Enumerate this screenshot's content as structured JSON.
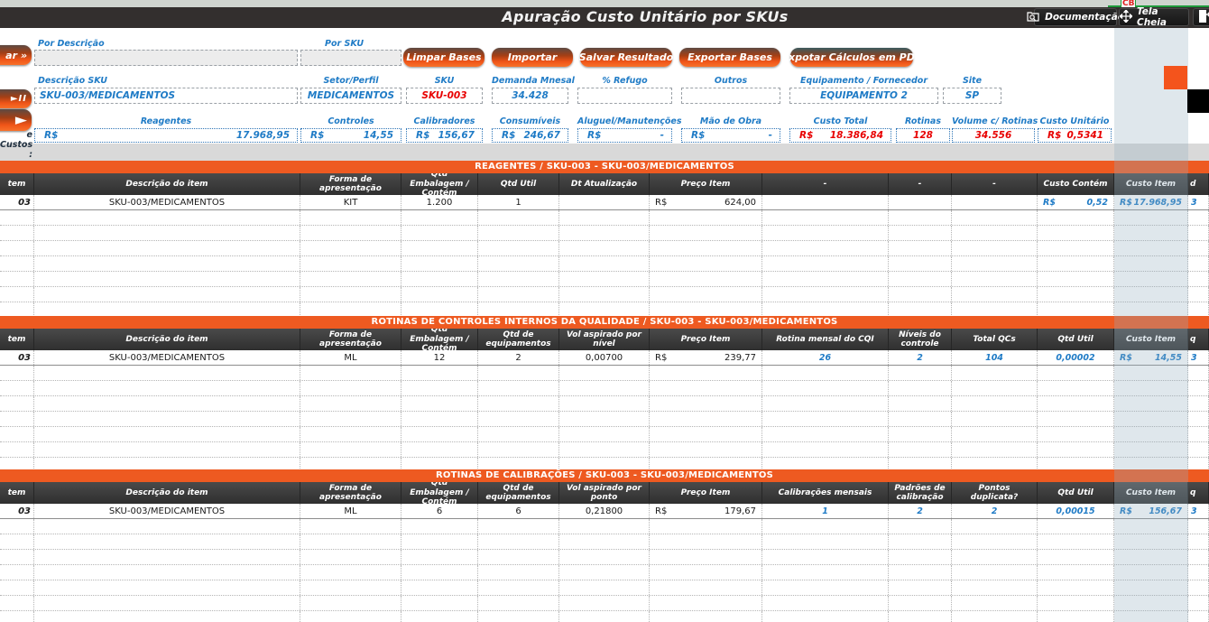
{
  "marker": {
    "cb": "CB"
  },
  "header": {
    "title": "Apuração Custo Unitário por SKUs",
    "buttons": [
      {
        "label": "Documentação",
        "icon": "documentation-folder-icon"
      },
      {
        "label": "Tela Cheia",
        "icon": "fullscreen-move-icon"
      },
      {
        "label": "",
        "icon": "exit-door-icon"
      }
    ]
  },
  "left_toolbar": {
    "search_button_fragment": "ar »",
    "playpause_button": "►II",
    "arrow_button": "►",
    "costs_row_label_fragment": "e Custos :"
  },
  "filters": {
    "by_description_label": "Por Descrição",
    "by_description_value": "",
    "by_sku_label": "Por SKU",
    "by_sku_value": ""
  },
  "action_buttons": [
    "Limpar Bases",
    "Importar",
    "Salvar Resultado",
    "Exportar Bases",
    "Expotar Cálculos em PDF"
  ],
  "sku_summary": {
    "fields": [
      {
        "label": "Descrição SKU",
        "value": "SKU-003/MEDICAMENTOS",
        "color": "blue",
        "align": "left"
      },
      {
        "label": "Setor/Perfil",
        "value": "MEDICAMENTOS",
        "color": "blue",
        "align": "center"
      },
      {
        "label": "SKU",
        "value": "SKU-003",
        "color": "red",
        "align": "center"
      },
      {
        "label": "Demanda Mnesal",
        "value": "34.428",
        "color": "blue",
        "align": "center"
      },
      {
        "label": "% Refugo",
        "value": "",
        "color": "blue",
        "align": "center"
      },
      {
        "label": "Outros",
        "value": "",
        "color": "blue",
        "align": "center"
      },
      {
        "label": "Equipamento / Fornecedor",
        "value": "EQUIPAMENTO 2",
        "color": "blue",
        "align": "center"
      },
      {
        "label": "Site",
        "value": "SP",
        "color": "blue",
        "align": "center"
      }
    ]
  },
  "cost_summary": {
    "items": [
      {
        "label": "Reagentes",
        "currency": "R$",
        "value": "17.968,95",
        "color": "blue"
      },
      {
        "label": "Controles",
        "currency": "R$",
        "value": "14,55",
        "color": "blue"
      },
      {
        "label": "Calibradores",
        "currency": "R$",
        "value": "156,67",
        "color": "blue"
      },
      {
        "label": "Consumíveis",
        "currency": "R$",
        "value": "246,67",
        "color": "blue"
      },
      {
        "label": "Aluguel/Manutenções",
        "currency": "R$",
        "value": "-",
        "color": "blue"
      },
      {
        "label": "Mão de Obra",
        "currency": "R$",
        "value": "-",
        "color": "blue"
      },
      {
        "label": "Custo Total",
        "currency": "R$",
        "value": "18.386,84",
        "color": "red"
      },
      {
        "label": "Rotinas",
        "currency": "",
        "value": "128",
        "color": "red"
      },
      {
        "label": "Volume c/ Rotinas",
        "currency": "",
        "value": "34.556",
        "color": "red"
      },
      {
        "label": "Custo Unitário",
        "currency": "R$",
        "value": "0,5341",
        "color": "red"
      }
    ]
  },
  "tables": [
    {
      "banner": "REAGENTES / SKU-003 - SKU-003/MEDICAMENTOS",
      "headers": [
        "tem",
        "Descrição do item",
        "Forma de apresentação",
        "Qtd Embalagem / Contém",
        "Qtd Util",
        "Dt Atualização",
        "Preço Item",
        "-",
        "-",
        "-",
        "Custo Contém",
        "Custo Item",
        "d"
      ],
      "row": [
        {
          "v": "03",
          "c": "item",
          "a": "right"
        },
        {
          "v": "SKU-003/MEDICAMENTOS",
          "c": "black"
        },
        {
          "v": "KIT",
          "c": "black"
        },
        {
          "v": "1.200",
          "c": "black"
        },
        {
          "v": "1",
          "c": "black"
        },
        {
          "v": "",
          "c": "black"
        },
        {
          "v": "624,00",
          "rs": "R$",
          "c": "black"
        },
        {
          "v": "",
          "c": "black"
        },
        {
          "v": "",
          "c": "black"
        },
        {
          "v": "",
          "c": "black"
        },
        {
          "v": "0,52",
          "rs": "R$",
          "c": "bluev"
        },
        {
          "v": "17.968,95",
          "rs": "R$",
          "c": "bluev"
        },
        {
          "v": "3",
          "c": "bluev",
          "a": "frag"
        }
      ]
    },
    {
      "banner": "ROTINAS DE CONTROLES INTERNOS DA QUALIDADE / SKU-003 - SKU-003/MEDICAMENTOS",
      "headers": [
        "tem",
        "Descrição do item",
        "Forma de apresentação",
        "Qtd Embalagem / Contém",
        "Qtd de equipamentos",
        "Vol aspirado por nível",
        "Preço Item",
        "Rotina mensal do CQI",
        "Níveis do controle",
        "Total QCs",
        "Qtd Util",
        "Custo Item",
        "q"
      ],
      "row": [
        {
          "v": "03",
          "c": "item",
          "a": "right"
        },
        {
          "v": "SKU-003/MEDICAMENTOS",
          "c": "black"
        },
        {
          "v": "ML",
          "c": "black"
        },
        {
          "v": "12",
          "c": "black"
        },
        {
          "v": "2",
          "c": "black"
        },
        {
          "v": "0,00700",
          "c": "black"
        },
        {
          "v": "239,77",
          "rs": "R$",
          "c": "black"
        },
        {
          "v": "26",
          "c": "bluev"
        },
        {
          "v": "2",
          "c": "bluev"
        },
        {
          "v": "104",
          "c": "bluev"
        },
        {
          "v": "0,00002",
          "c": "bluev"
        },
        {
          "v": "14,55",
          "rs": "R$",
          "c": "bluev"
        },
        {
          "v": "3",
          "c": "bluev",
          "a": "frag"
        }
      ]
    },
    {
      "banner": "ROTINAS DE CALIBRAÇÕES / SKU-003 - SKU-003/MEDICAMENTOS",
      "headers": [
        "tem",
        "Descrição do item",
        "Forma de apresentação",
        "Qtd Embalagem / Contém",
        "Qtd de equipamentos",
        "Vol aspirado por ponto",
        "Preço Item",
        "Calibrações mensais",
        "Padrões de calibração",
        "Pontos duplicata?",
        "Qtd Util",
        "Custo Item",
        "q"
      ],
      "row": [
        {
          "v": "03",
          "c": "item",
          "a": "right"
        },
        {
          "v": "SKU-003/MEDICAMENTOS",
          "c": "black"
        },
        {
          "v": "ML",
          "c": "black"
        },
        {
          "v": "6",
          "c": "black"
        },
        {
          "v": "6",
          "c": "black"
        },
        {
          "v": "0,21800",
          "c": "black"
        },
        {
          "v": "179,67",
          "rs": "R$",
          "c": "black"
        },
        {
          "v": "1",
          "c": "bluev"
        },
        {
          "v": "2",
          "c": "bluev"
        },
        {
          "v": "2",
          "c": "bluev"
        },
        {
          "v": "0,00015",
          "c": "bluev"
        },
        {
          "v": "156,67",
          "rs": "R$",
          "c": "bluev"
        },
        {
          "v": "3",
          "c": "bluev",
          "a": "frag"
        }
      ]
    }
  ],
  "colors": {
    "accent_orange": "#EE5A21",
    "link_blue": "#1F7BC6",
    "alert_red": "#E80000",
    "header_dark": "#3A3A3A"
  }
}
